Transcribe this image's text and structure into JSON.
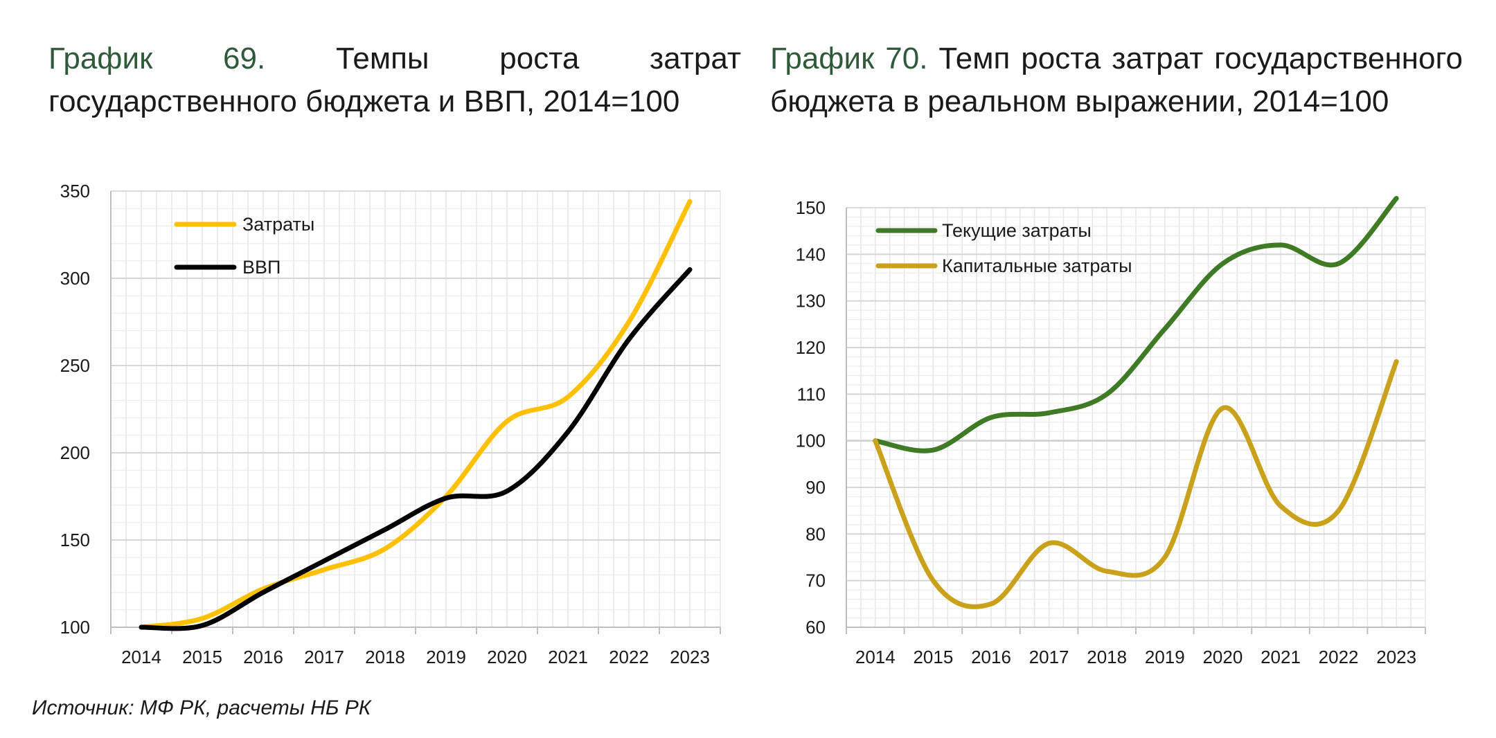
{
  "charts": {
    "left": {
      "title_num": "График 69.",
      "title_rest": " Темпы роста затрат государственного бюджета и ВВП, 2014=100"
    },
    "right": {
      "title_num": "График 70.",
      "title_rest": " Темп роста затрат государственного бюджета в реальном выражении, 2014=100"
    }
  },
  "source": "Источник: МФ РК, расчеты НБ РК",
  "chart_data": [
    {
      "type": "line",
      "title": "График 69. Темпы роста затрат государственного бюджета и ВВП, 2014=100",
      "x": [
        "2014",
        "2015",
        "2016",
        "2017",
        "2018",
        "2019",
        "2020",
        "2021",
        "2022",
        "2023"
      ],
      "ylim": [
        100,
        350
      ],
      "yticks": [
        100,
        150,
        200,
        250,
        300,
        350
      ],
      "grid": true,
      "legend": "top-left",
      "series": [
        {
          "name": "Затраты",
          "color": "#ffc000",
          "values": [
            100,
            105,
            122,
            133,
            145,
            175,
            218,
            232,
            275,
            344
          ]
        },
        {
          "name": "ВВП",
          "color": "#000000",
          "values": [
            100,
            101,
            120,
            138,
            156,
            174,
            178,
            212,
            265,
            305
          ]
        }
      ]
    },
    {
      "type": "line",
      "title": "График 70. Темп роста затрат государственного бюджета в реальном выражении, 2014=100",
      "x": [
        "2014",
        "2015",
        "2016",
        "2017",
        "2018",
        "2019",
        "2020",
        "2021",
        "2022",
        "2023"
      ],
      "ylim": [
        60,
        150
      ],
      "yticks": [
        60,
        70,
        80,
        90,
        100,
        110,
        120,
        130,
        140,
        150
      ],
      "grid": true,
      "legend": "top-left",
      "series": [
        {
          "name": "Текущие затраты",
          "color": "#3f7a24",
          "values": [
            100,
            98,
            105,
            106,
            110,
            124,
            138,
            142,
            138,
            152
          ]
        },
        {
          "name": "Капитальные затраты",
          "color": "#c9a11a",
          "values": [
            100,
            70,
            65,
            78,
            72,
            75,
            107,
            86,
            85,
            117
          ]
        }
      ]
    }
  ]
}
